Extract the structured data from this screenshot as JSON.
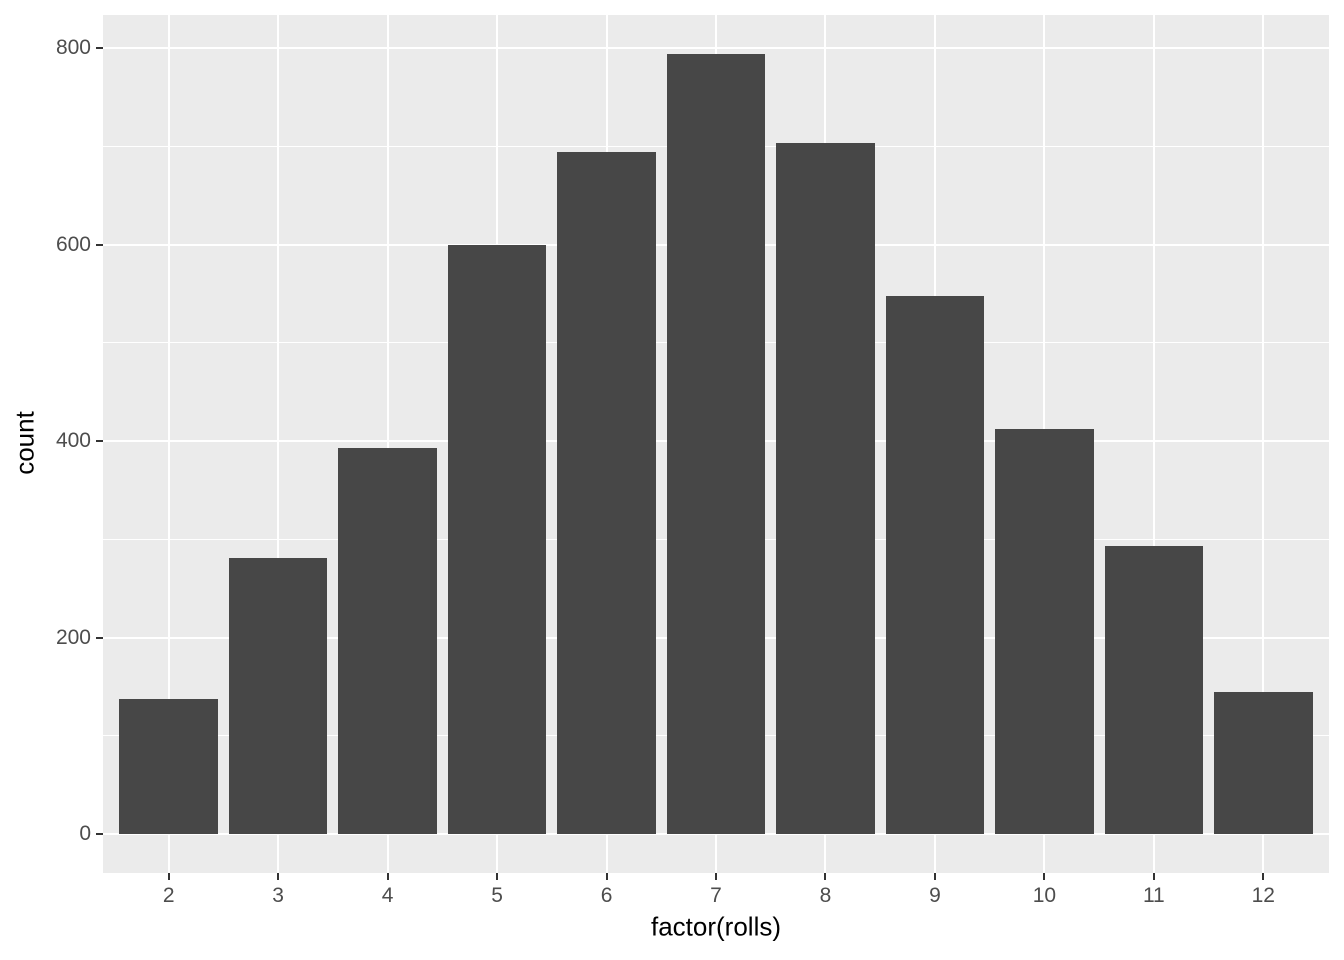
{
  "chart_data": {
    "type": "bar",
    "title": "",
    "xlabel": "factor(rolls)",
    "ylabel": "count",
    "categories": [
      "2",
      "3",
      "4",
      "5",
      "6",
      "7",
      "8",
      "9",
      "10",
      "11",
      "12"
    ],
    "values": [
      137,
      281,
      393,
      600,
      694,
      794,
      703,
      548,
      412,
      293,
      145
    ],
    "ylim": [
      0,
      833
    ],
    "y_major_ticks": [
      0,
      200,
      400,
      600,
      800
    ],
    "y_minor_ticks": [
      100,
      300,
      500,
      700
    ],
    "y_tick_labels": [
      "0",
      "200",
      "400",
      "600",
      "800"
    ],
    "grid": "major-and-minor, white on grey panel",
    "legend_position": "none",
    "style": {
      "panel_bg": "#EBEBEB",
      "grid_color": "#FFFFFF",
      "bar_fill": "#474747",
      "tick_label_color": "#4D4D4D",
      "axis_title_color": "#000000",
      "tick_mark_color": "#333333",
      "figure_bg": "#FFFFFF"
    }
  }
}
